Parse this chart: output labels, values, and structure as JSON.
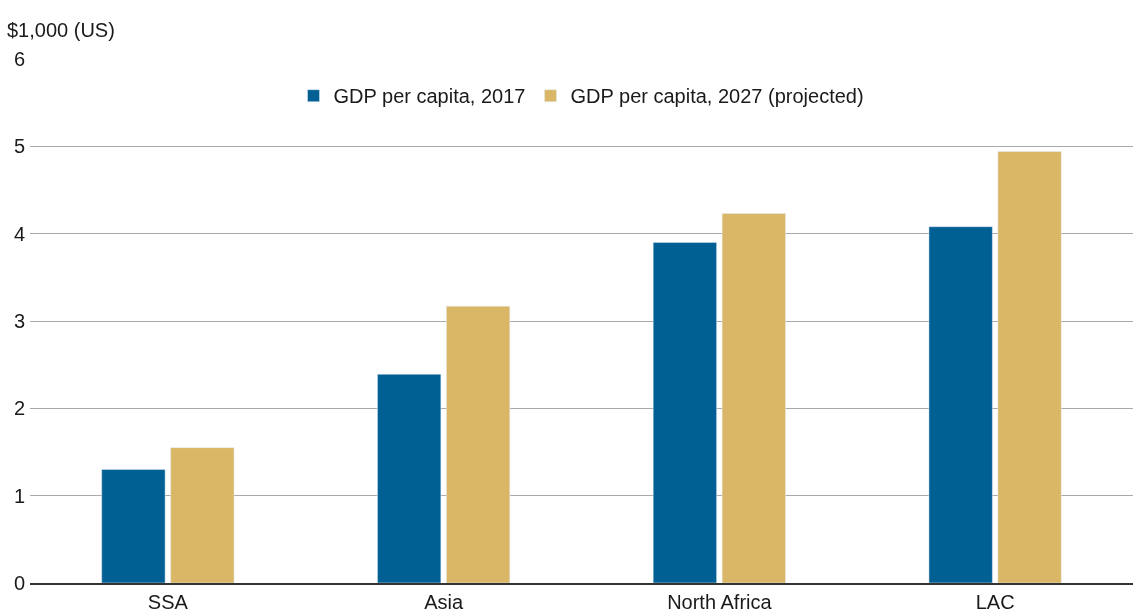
{
  "chart_data": {
    "type": "bar",
    "ylabel": "$1,000 (US)",
    "categories": [
      "SSA",
      "Asia",
      "North Africa",
      "LAC"
    ],
    "series": [
      {
        "name": "GDP per capita, 2017",
        "color": "#005f93",
        "values": [
          1.3,
          2.39,
          3.9,
          4.08
        ]
      },
      {
        "name": "GDP per capita, 2027 (projected)",
        "color": "#d9b766",
        "values": [
          1.55,
          3.17,
          4.23,
          4.94
        ]
      }
    ],
    "ylim": [
      0,
      6
    ],
    "yticks": [
      0,
      1,
      2,
      3,
      4,
      5,
      6
    ],
    "grid": "y",
    "legend": "top"
  }
}
